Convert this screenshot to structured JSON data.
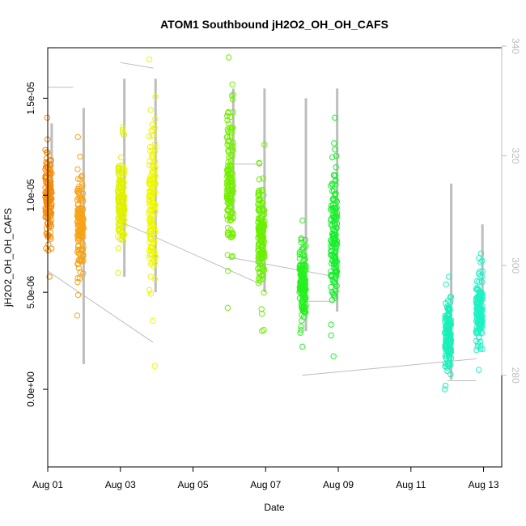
{
  "chart_data": {
    "type": "scatter",
    "title": "ATOM1 Southbound jH2O2_OH_OH_CAFS",
    "xlabel": "Date",
    "ylabel": "jH2O2_OH_OH_CAFS",
    "xlim": [
      0.0,
      12.5
    ],
    "ylim": [
      -4e-06,
      1.76e-05
    ],
    "x_ticks": [
      {
        "value": 0,
        "label": "Aug 01"
      },
      {
        "value": 2,
        "label": "Aug 03"
      },
      {
        "value": 4,
        "label": "Aug 05"
      },
      {
        "value": 6,
        "label": "Aug 07"
      },
      {
        "value": 8,
        "label": "Aug 09"
      },
      {
        "value": 10,
        "label": "Aug 11"
      },
      {
        "value": 12,
        "label": "Aug 13"
      }
    ],
    "y_ticks": [
      {
        "value": 0,
        "label": "0.0e+00"
      },
      {
        "value": 5e-06,
        "label": "5.0e-06"
      },
      {
        "value": 1e-05,
        "label": "1.0e-05"
      },
      {
        "value": 1.5e-05,
        "label": "1.5e-05"
      }
    ],
    "y2_lim": [
      263.3,
      339.7
    ],
    "y2_ticks": [
      {
        "value": 280,
        "label": "280"
      },
      {
        "value": 300,
        "label": "300"
      },
      {
        "value": 320,
        "label": "320"
      },
      {
        "value": 340,
        "label": "340"
      }
    ],
    "secondary_series_color": "#bdbdbd",
    "grid": false,
    "point_marker": "open-circle",
    "flights": [
      {
        "x": 0.02,
        "ymin": 5.8e-06,
        "ymax": 1.4e-05,
        "color": "#f58a0a",
        "gray_min": 1e-05,
        "gray_max": 1.37e-05
      },
      {
        "x": 0.9,
        "ymin": 3.8e-06,
        "ymax": 1.3e-05,
        "color": "#f7a318",
        "gray_min": 1.3e-06,
        "gray_max": 1.45e-05
      },
      {
        "x": 2.02,
        "ymin": 6e-06,
        "ymax": 1.35e-05,
        "color": "#e1f200",
        "gray_min": 5.8e-06,
        "gray_max": 1.6e-05
      },
      {
        "x": 2.88,
        "ymin": 1.2e-06,
        "ymax": 1.7e-05,
        "color": "#eef700",
        "gray_min": 5e-06,
        "gray_max": 1.6e-05
      },
      {
        "x": 5.02,
        "ymin": 4.2e-06,
        "ymax": 1.71e-05,
        "color": "#74ee00",
        "gray_min": 9e-06,
        "gray_max": 1.55e-05
      },
      {
        "x": 5.88,
        "ymin": 3e-06,
        "ymax": 1.26e-05,
        "color": "#6aef00",
        "gray_min": 5e-06,
        "gray_max": 1.55e-05
      },
      {
        "x": 7.02,
        "ymin": 2.2e-06,
        "ymax": 8.7e-06,
        "color": "#27f01e",
        "gray_min": 3e-06,
        "gray_max": 1.5e-05
      },
      {
        "x": 7.88,
        "ymin": 1.7e-06,
        "ymax": 1.4e-05,
        "color": "#18ef2c",
        "gray_min": 4e-06,
        "gray_max": 1.55e-05
      },
      {
        "x": 11.02,
        "ymin": 0.0,
        "ymax": 5.8e-06,
        "color": "#1af0b8",
        "gray_min": 5e-07,
        "gray_max": 1.06e-05
      },
      {
        "x": 11.88,
        "ymin": 1e-06,
        "ymax": 7e-06,
        "color": "#1ef2c4",
        "gray_min": 4e-06,
        "gray_max": 8.5e-06
      }
    ],
    "secondary_connectors": [
      {
        "x": [
          0.0,
          0.7
        ],
        "y2": [
          332.5,
          332.5
        ]
      },
      {
        "x": [
          2.0,
          2.9
        ],
        "y2": [
          337.0,
          336.0
        ]
      },
      {
        "x": [
          5.0,
          5.9
        ],
        "y2": [
          318.5,
          318.5
        ]
      },
      {
        "x": [
          7.0,
          7.9
        ],
        "y2": [
          293.5,
          293.5
        ]
      },
      {
        "x": [
          11.0,
          11.8
        ],
        "y2": [
          279.0,
          279.0
        ]
      },
      {
        "x": [
          0.0,
          2.9
        ],
        "y2": [
          299.0,
          286.0
        ]
      },
      {
        "x": [
          2.0,
          5.9
        ],
        "y2": [
          308.0,
          296.5
        ]
      },
      {
        "x": [
          5.0,
          7.9
        ],
        "y2": [
          301.5,
          298.0
        ]
      },
      {
        "x": [
          7.0,
          11.8
        ],
        "y2": [
          280.0,
          283.0
        ]
      }
    ]
  }
}
